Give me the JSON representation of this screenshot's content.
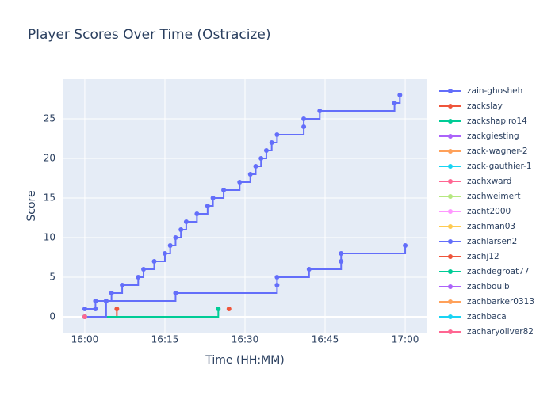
{
  "chart_data": {
    "type": "line",
    "line_shape": "step",
    "title": "Player Scores Over Time (Ostracize)",
    "x_label": "Time (HH:MM)",
    "y_label": "Score",
    "xlim": [
      "15:56",
      "17:04"
    ],
    "xticks": [
      "16:00",
      "16:15",
      "16:30",
      "16:45",
      "17:00"
    ],
    "ylim": [
      -2,
      30
    ],
    "yticks": [
      0,
      5,
      10,
      15,
      20,
      25
    ],
    "grid": true,
    "legend": "right",
    "series": [
      {
        "name": "zain-ghosheh",
        "color": "#636efa",
        "x": [
          "16:00",
          "16:02",
          "16:02",
          "16:04",
          "16:05",
          "16:07",
          "16:10",
          "16:11",
          "16:13",
          "16:15",
          "16:16",
          "16:17",
          "16:18",
          "16:19",
          "16:21",
          "16:23",
          "16:24",
          "16:26",
          "16:29",
          "16:31",
          "16:32",
          "16:33",
          "16:34",
          "16:35",
          "16:36",
          "16:41",
          "16:41",
          "16:44",
          "16:58",
          "16:59"
        ],
        "values": [
          1,
          1,
          2,
          2,
          3,
          4,
          5,
          6,
          7,
          8,
          9,
          10,
          11,
          12,
          13,
          14,
          15,
          16,
          17,
          18,
          19,
          20,
          21,
          22,
          23,
          24,
          25,
          26,
          27,
          28
        ]
      },
      {
        "name": "zackslay",
        "color": "#EF553B",
        "x": [
          "16:00",
          "16:06"
        ],
        "values": [
          0,
          1
        ]
      },
      {
        "name": "zackshapiro14",
        "color": "#00cc96",
        "x": [
          "16:00",
          "16:25"
        ],
        "values": [
          0,
          1
        ]
      },
      {
        "name": "zackgiesting",
        "color": "#ab63fa",
        "x": [
          "16:00"
        ],
        "values": [
          0
        ]
      },
      {
        "name": "zack-wagner-2",
        "color": "#FFA15A",
        "x": [
          "16:00"
        ],
        "values": [
          0
        ]
      },
      {
        "name": "zack-gauthier-1",
        "color": "#19d3f3",
        "x": [
          "16:00"
        ],
        "values": [
          0
        ]
      },
      {
        "name": "zachxward",
        "color": "#FF6692",
        "x": [
          "16:00"
        ],
        "values": [
          0
        ]
      },
      {
        "name": "zachweimert",
        "color": "#B6E880",
        "x": [
          "16:00"
        ],
        "values": [
          0
        ]
      },
      {
        "name": "zacht2000",
        "color": "#FF97FF",
        "x": [
          "16:00"
        ],
        "values": [
          0
        ]
      },
      {
        "name": "zachman03",
        "color": "#FECB52",
        "x": [
          "16:00"
        ],
        "values": [
          0
        ]
      },
      {
        "name": "zachlarsen2",
        "color": "#636efa",
        "x": [
          "16:00",
          "16:04",
          "16:17",
          "16:36",
          "16:36",
          "16:42",
          "16:48",
          "16:48",
          "17:00"
        ],
        "values": [
          0,
          2,
          3,
          4,
          5,
          6,
          7,
          8,
          9
        ]
      },
      {
        "name": "zachj12",
        "color": "#EF553B",
        "x": [
          "16:27"
        ],
        "values": [
          1
        ]
      },
      {
        "name": "zachdegroat77",
        "color": "#00cc96",
        "x": [
          "16:00"
        ],
        "values": [
          0
        ]
      },
      {
        "name": "zachboulb",
        "color": "#ab63fa",
        "x": [
          "16:00"
        ],
        "values": [
          0
        ]
      },
      {
        "name": "zachbarker0313",
        "color": "#FFA15A",
        "x": [
          "16:00"
        ],
        "values": [
          0
        ]
      },
      {
        "name": "zachbaca",
        "color": "#19d3f3",
        "x": [
          "16:00"
        ],
        "values": [
          0
        ]
      },
      {
        "name": "zacharyoliver82",
        "color": "#FF6692",
        "x": [
          "16:00"
        ],
        "values": [
          0
        ]
      }
    ]
  }
}
